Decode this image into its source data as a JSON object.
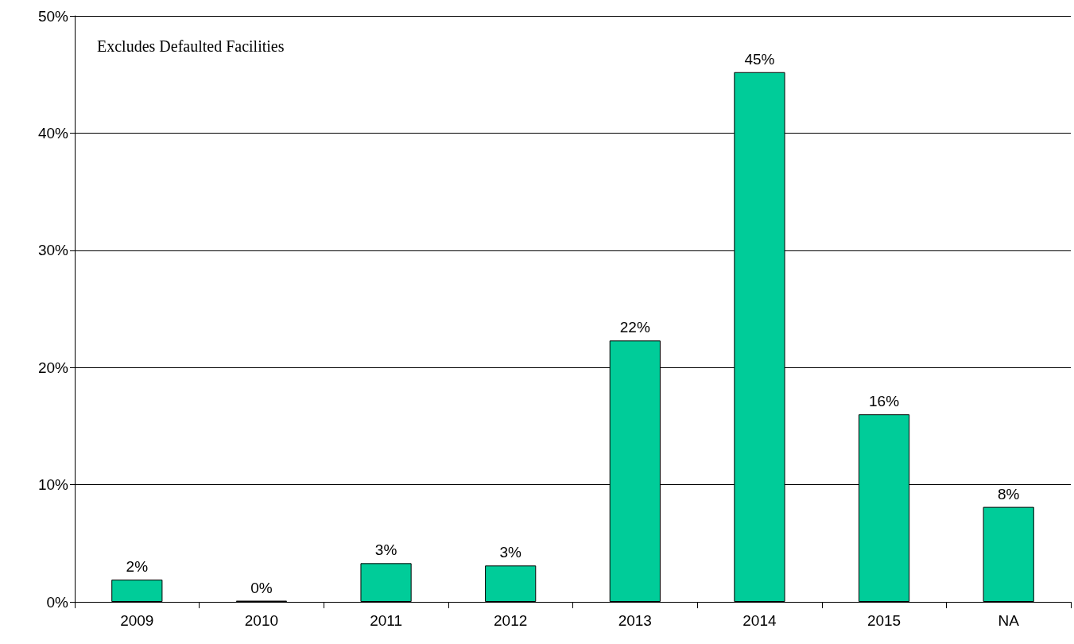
{
  "chart_data": {
    "type": "bar",
    "categories": [
      "2009",
      "2010",
      "2011",
      "2012",
      "2013",
      "2014",
      "2015",
      "NA"
    ],
    "values": [
      1.9,
      0.1,
      3.3,
      3.1,
      22.3,
      45.2,
      16,
      8.1
    ],
    "value_labels": [
      "2%",
      "0%",
      "3%",
      "3%",
      "22%",
      "45%",
      "16%",
      "8%"
    ],
    "color": "#00cc99",
    "ylim": [
      0,
      50
    ],
    "yticks": [
      {
        "value": 0,
        "label": "0%"
      },
      {
        "value": 10,
        "label": "10%"
      },
      {
        "value": 20,
        "label": "20%"
      },
      {
        "value": 30,
        "label": "30%"
      },
      {
        "value": 40,
        "label": "40%"
      },
      {
        "value": 50,
        "label": "50%"
      }
    ],
    "grid": "y",
    "annotations": [
      "Excludes Defaulted Facilities"
    ]
  }
}
